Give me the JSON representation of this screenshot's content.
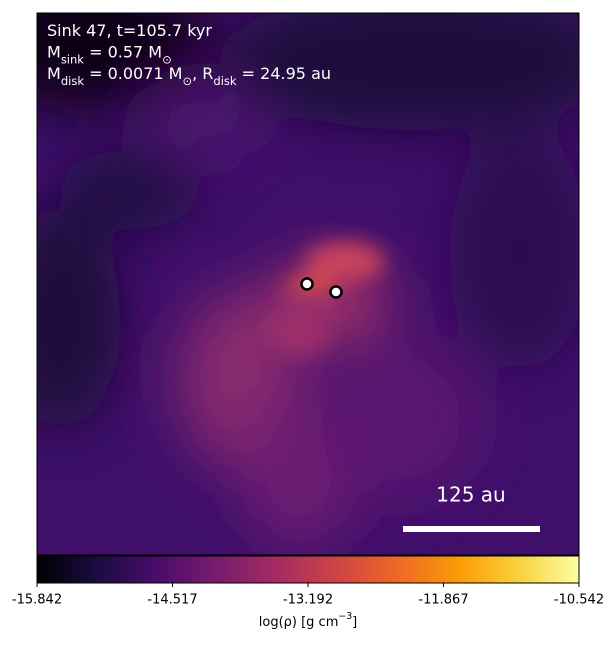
{
  "chart_data": {
    "type": "image",
    "annotations": [
      [
        "Sink 47, t=105.7 kyr"
      ],
      [
        "M",
        {
          "sub": "sink"
        },
        " = 0.57 M",
        {
          "sub": "⊙"
        }
      ],
      [
        "M",
        {
          "sub": "disk"
        },
        " = 0.0071 M",
        {
          "sub": "⊙"
        },
        ", R",
        {
          "sub": "disk"
        },
        " = 24.95 au"
      ]
    ],
    "scale_bar_label": "125 au",
    "colorbar": {
      "colormap": "inferno",
      "label": [
        "log(ρ) [g cm",
        {
          "sup": "−3"
        },
        "]"
      ],
      "lim": [
        -15.842,
        -10.542
      ],
      "ticks": [
        -15.842,
        -14.517,
        -13.192,
        -11.867,
        -10.542
      ]
    }
  }
}
